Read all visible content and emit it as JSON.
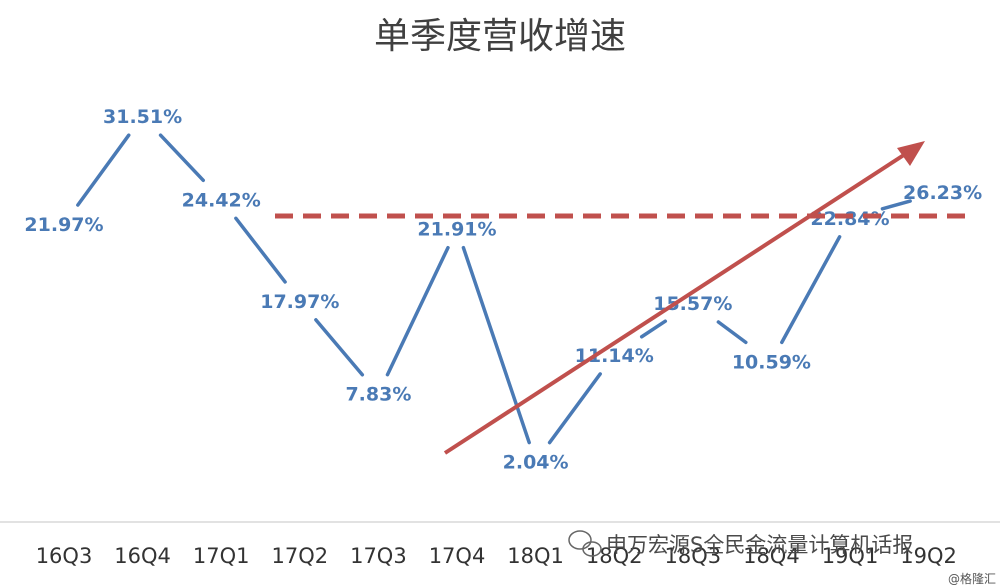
{
  "chart_data": {
    "type": "line",
    "title": "单季度营收增速",
    "categories": [
      "16Q3",
      "16Q4",
      "17Q1",
      "17Q2",
      "17Q3",
      "17Q4",
      "18Q1",
      "18Q2",
      "18Q3",
      "18Q4",
      "19Q1",
      "19Q2"
    ],
    "series": [
      {
        "values": [
          21.97,
          31.51,
          24.42,
          17.97,
          7.83,
          21.91,
          2.04,
          11.14,
          15.57,
          10.59,
          22.84,
          26.23
        ]
      }
    ],
    "data_labels": [
      "21.97%",
      "31.51%",
      "24.42%",
      "17.97%",
      "7.83%",
      "21.91%",
      "2.04%",
      "11.14%",
      "15.57%",
      "10.59%",
      "22.84%",
      "26.23%"
    ],
    "annotations": {
      "reference_line": {
        "style": "dashed",
        "color": "#c0504d",
        "from_category": "17Q1",
        "to_category": "19Q2",
        "level": 24.42
      },
      "trend_arrow": {
        "color": "#c0504d",
        "from_category": "17Q4",
        "to_category": "19Q2",
        "direction": "up"
      }
    },
    "grid": false,
    "colors": {
      "line": "#4a7ab5",
      "labels": "#4a7ab5",
      "annotation": "#c0504d"
    }
  },
  "watermark": {
    "text": "申万宏源S全民金流量计算机话报",
    "small_text": "@格隆汇"
  }
}
